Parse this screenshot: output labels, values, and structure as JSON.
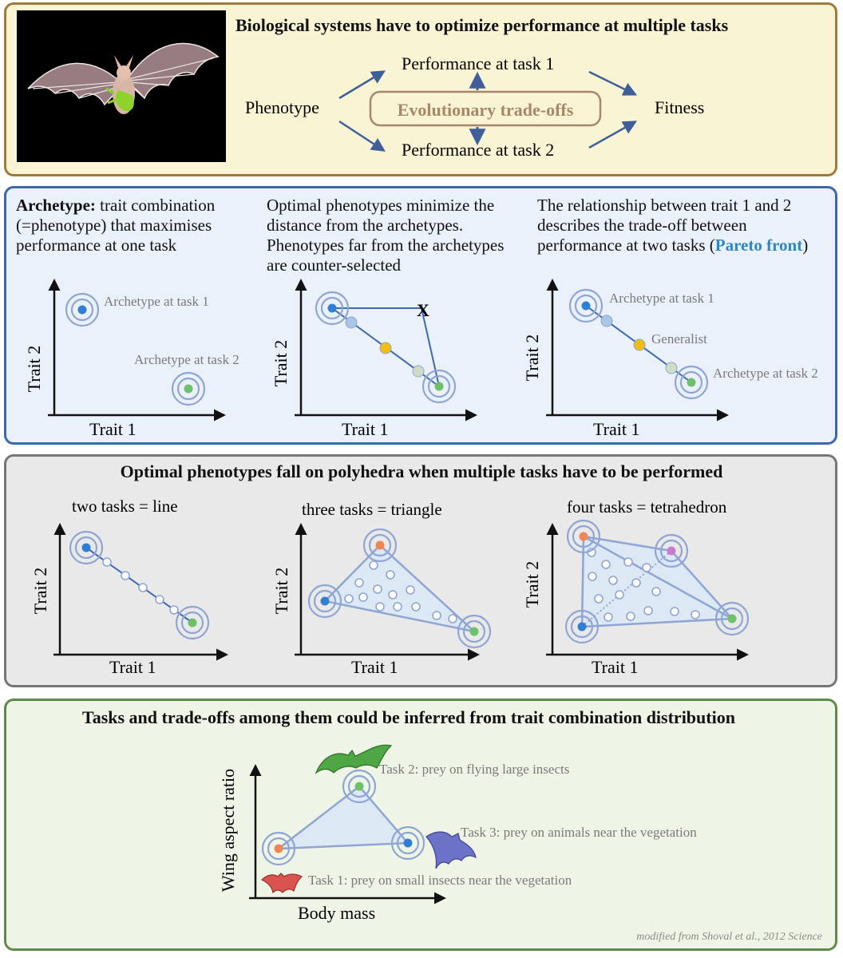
{
  "top": {
    "title": "Biological systems have to optimize performance at multiple tasks",
    "phenotype": "Phenotype",
    "task1": "Performance at task 1",
    "task2": "Performance at task 2",
    "tradeoffs": "Evolutionary trade-offs",
    "fitness": "Fitness"
  },
  "archetype": {
    "col1_bold": "Archetype:",
    "col1_rest": " trait combination (=phenotype) that maximises performance at one task",
    "col2": "Optimal phenotypes minimize the distance from the archetypes. Phenotypes far from the archetypes are counter-selected",
    "col3_main": "The relationship between trait 1 and 2 describes the trade-off between performance at two tasks (",
    "col3_highlight": "Pareto front",
    "col3_end": ")",
    "trait1": "Trait 1",
    "trait2": "Trait 2",
    "arch_task1": "Archetype at task 1",
    "arch_task2": "Archetype at task 2",
    "generalist": "Generalist",
    "x_mark": "X"
  },
  "polyhedra": {
    "title": "Optimal phenotypes fall on polyhedra when multiple tasks have to be performed",
    "line": "two tasks = line",
    "triangle": "three tasks = triangle",
    "tetra": "four tasks = tetrahedron",
    "trait1": "Trait 1",
    "trait2": "Trait 2"
  },
  "bats": {
    "title": "Tasks and trade-offs among them could be inferred from trait combination distribution",
    "ylabel": "Wing aspect ratio",
    "xlabel": "Body mass",
    "task2": "Task 2: prey on flying large insects",
    "task3": "Task 3: prey on animals near the vegetation",
    "task1": "Task 1: prey on small insects near the vegetation",
    "credit": "modified from Shoval et al., 2012 Science"
  },
  "colors": {
    "ring": "#8fa5d3",
    "blue_dot": "#2f7fd4",
    "green_dot": "#6fc06a",
    "orange_dot": "#ee8752",
    "purple_dot": "#c77ccf",
    "yellow_dot": "#f2bc14",
    "light_dot": "#a9c6e6",
    "pareto": "#2d87c4",
    "tradeoff": "#a9866a"
  }
}
